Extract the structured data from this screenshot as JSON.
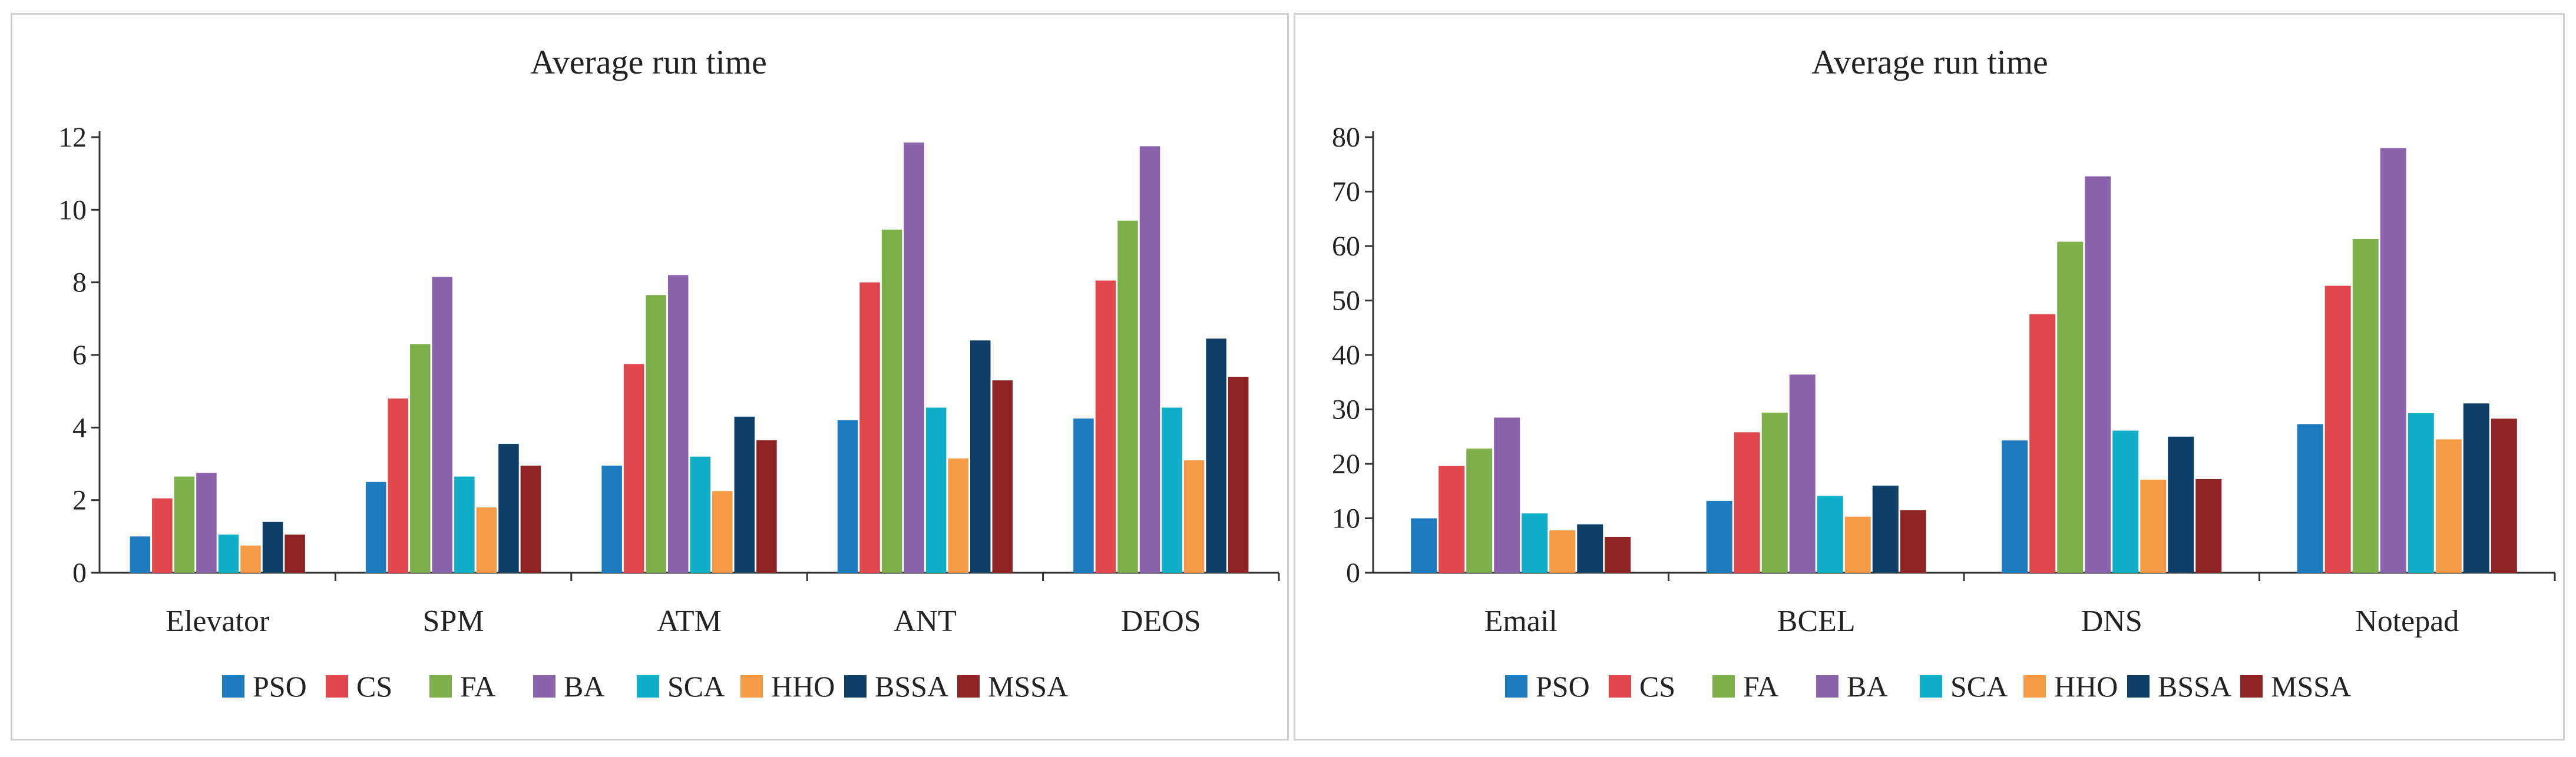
{
  "series_colors": {
    "PSO": "#1f7bbf",
    "CS": "#e0484b",
    "FA": "#7db04a",
    "BA": "#8b63ad",
    "SCA": "#10aec9",
    "HHO": "#f59b45",
    "BSSA": "#0e3f68",
    "MSSA": "#8f2323"
  },
  "chart_data": [
    {
      "type": "bar",
      "title": "Average run time",
      "xlabel": "",
      "ylabel": "",
      "ylim": [
        0,
        12
      ],
      "yticks": [
        0,
        2,
        4,
        6,
        8,
        10,
        12
      ],
      "legend_position": "bottom",
      "grid": false,
      "categories": [
        "Elevator",
        "SPM",
        "ATM",
        "ANT",
        "DEOS"
      ],
      "series": [
        {
          "name": "PSO",
          "values": [
            1.0,
            2.5,
            2.95,
            4.2,
            4.25
          ]
        },
        {
          "name": "CS",
          "values": [
            2.05,
            4.8,
            5.75,
            8.0,
            8.05
          ]
        },
        {
          "name": "FA",
          "values": [
            2.65,
            6.3,
            7.65,
            9.45,
            9.7
          ]
        },
        {
          "name": "BA",
          "values": [
            2.75,
            8.15,
            8.2,
            11.85,
            11.75
          ]
        },
        {
          "name": "SCA",
          "values": [
            1.05,
            2.65,
            3.2,
            4.55,
            4.55
          ]
        },
        {
          "name": "HHO",
          "values": [
            0.75,
            1.8,
            2.25,
            3.15,
            3.1
          ]
        },
        {
          "name": "BSSA",
          "values": [
            1.4,
            3.55,
            4.3,
            6.4,
            6.45
          ]
        },
        {
          "name": "MSSA",
          "values": [
            1.05,
            2.95,
            3.65,
            5.3,
            5.4
          ]
        }
      ]
    },
    {
      "type": "bar",
      "title": "Average run time",
      "xlabel": "",
      "ylabel": "",
      "ylim": [
        0,
        80
      ],
      "yticks": [
        0,
        10,
        20,
        30,
        40,
        50,
        60,
        70,
        80
      ],
      "legend_position": "bottom",
      "grid": false,
      "categories": [
        "Email",
        "BCEL",
        "DNS",
        "Notepad"
      ],
      "series": [
        {
          "name": "PSO",
          "values": [
            10.0,
            13.2,
            24.3,
            27.3
          ]
        },
        {
          "name": "CS",
          "values": [
            19.6,
            25.8,
            47.5,
            52.7
          ]
        },
        {
          "name": "FA",
          "values": [
            22.8,
            29.4,
            60.8,
            61.3
          ]
        },
        {
          "name": "BA",
          "values": [
            28.5,
            36.4,
            72.8,
            78.0
          ]
        },
        {
          "name": "SCA",
          "values": [
            10.9,
            14.1,
            26.1,
            29.3
          ]
        },
        {
          "name": "HHO",
          "values": [
            7.8,
            10.3,
            17.1,
            24.5
          ]
        },
        {
          "name": "BSSA",
          "values": [
            8.9,
            16.0,
            25.0,
            31.1
          ]
        },
        {
          "name": "MSSA",
          "values": [
            6.6,
            11.5,
            17.2,
            28.3
          ]
        }
      ]
    }
  ]
}
